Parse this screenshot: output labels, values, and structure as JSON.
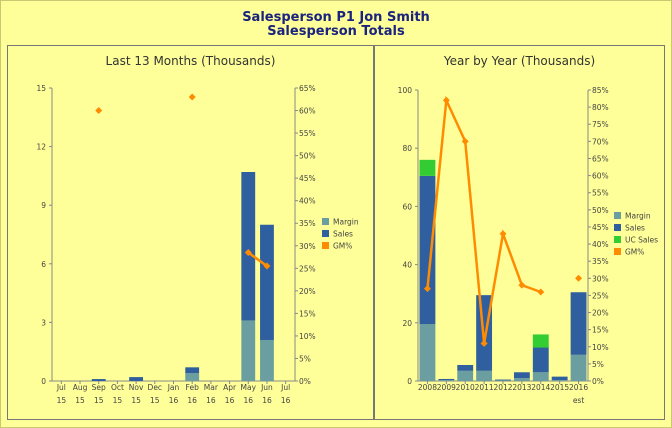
{
  "header": {
    "title_line1": "Salesperson P1 Jon Smith",
    "title_line2": "Salesperson Totals"
  },
  "chart_data": [
    {
      "type": "bar",
      "title": "Last 13 Months (Thousands)",
      "stacked": true,
      "categories": [
        [
          "Jul",
          "15"
        ],
        [
          "Aug",
          "15"
        ],
        [
          "Sep",
          "15"
        ],
        [
          "Oct",
          "15"
        ],
        [
          "Nov",
          "15"
        ],
        [
          "Dec",
          "15"
        ],
        [
          "Jan",
          "16"
        ],
        [
          "Feb",
          "16"
        ],
        [
          "Mar",
          "16"
        ],
        [
          "Apr",
          "16"
        ],
        [
          "May",
          "16"
        ],
        [
          "Jun",
          "16"
        ],
        [
          "Jul",
          "16"
        ]
      ],
      "ylim": [
        0,
        15
      ],
      "y_ticks": [
        "0",
        "3",
        "6",
        "9",
        "12",
        "15"
      ],
      "y2lim": [
        0,
        65
      ],
      "y2_ticks": [
        "0%",
        "5%",
        "10%",
        "15%",
        "20%",
        "25%",
        "30%",
        "35%",
        "40%",
        "45%",
        "50%",
        "55%",
        "60%",
        "65%"
      ],
      "series": [
        {
          "name": "Margin",
          "color": "#6b9ea0",
          "values": [
            0,
            0,
            0,
            0,
            0,
            0,
            0,
            0.4,
            0,
            0,
            3.1,
            2.1,
            0
          ]
        },
        {
          "name": "Sales",
          "color": "#2f5f9e",
          "values": [
            0,
            0,
            0.1,
            0,
            0.2,
            0,
            0,
            0.3,
            0,
            0,
            7.6,
            5.9,
            0
          ]
        },
        {
          "name": "GM%",
          "color": "#ff8c00",
          "type": "line",
          "axis": "right",
          "values": [
            null,
            null,
            60,
            null,
            null,
            null,
            null,
            63,
            null,
            null,
            28.5,
            25.5,
            null
          ]
        }
      ],
      "legend": "right"
    },
    {
      "type": "bar",
      "title": "Year by Year (Thousands)",
      "stacked": true,
      "categories": [
        "2008",
        "2009",
        "2010",
        "2011",
        "2012",
        "2013",
        "2014",
        "2015",
        "2016"
      ],
      "category_sublabels": [
        "",
        "",
        "",
        "",
        "",
        "",
        "",
        "",
        "est"
      ],
      "ylim": [
        0,
        100
      ],
      "y_ticks": [
        "0",
        "20",
        "40",
        "60",
        "80",
        "100"
      ],
      "y2lim": [
        0,
        85
      ],
      "y2_ticks": [
        "0%",
        "5%",
        "10%",
        "15%",
        "20%",
        "25%",
        "30%",
        "35%",
        "40%",
        "45%",
        "50%",
        "55%",
        "60%",
        "65%",
        "70%",
        "75%",
        "80%",
        "85%"
      ],
      "series": [
        {
          "name": "Margin",
          "color": "#6b9ea0",
          "values": [
            19.5,
            0.3,
            3.5,
            3.5,
            0.3,
            1,
            3,
            0.3,
            9
          ]
        },
        {
          "name": "Sales",
          "color": "#2f5f9e",
          "values": [
            51,
            0.4,
            2,
            26,
            0.2,
            2,
            8.5,
            1.2,
            21.5
          ]
        },
        {
          "name": "UC Sales",
          "color": "#33cc33",
          "values": [
            5.5,
            0,
            0,
            0,
            0,
            0,
            4.5,
            0,
            0
          ]
        },
        {
          "name": "GM%",
          "color": "#ff8c00",
          "type": "line",
          "axis": "right",
          "values": [
            27,
            82,
            70,
            11,
            43,
            28,
            26,
            null,
            30
          ]
        }
      ],
      "legend": "right"
    }
  ]
}
